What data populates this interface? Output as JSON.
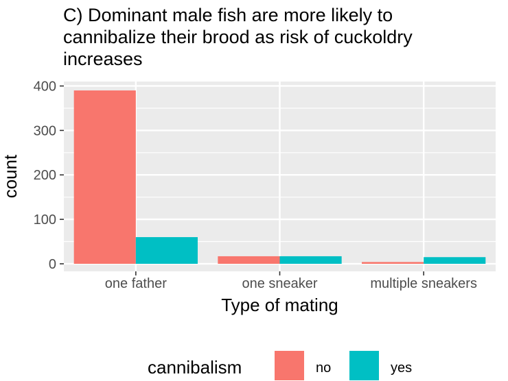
{
  "title_lines": [
    "C) Dominant male fish are more likely to",
    "cannibalize their brood as risk of cuckoldry",
    "increases"
  ],
  "chart_data": {
    "type": "bar",
    "title": "C) Dominant male fish are more likely to cannibalize their brood as risk of cuckoldry increases",
    "xlabel": "Type of mating",
    "ylabel": "count",
    "categories": [
      "one father",
      "one sneaker",
      "multiple sneakers"
    ],
    "series": [
      {
        "name": "no",
        "values": [
          390,
          17,
          4
        ],
        "color": "#F8766D"
      },
      {
        "name": "yes",
        "values": [
          60,
          17,
          15
        ],
        "color": "#00BFC4"
      }
    ],
    "ylim": [
      -17,
      410
    ],
    "yticks": [
      0,
      100,
      200,
      300,
      400
    ],
    "grid": true,
    "legend_title": "cannibalism",
    "legend_position": "bottom",
    "panel_background": "#EBEBEB",
    "grid_color": "#FFFFFF"
  }
}
